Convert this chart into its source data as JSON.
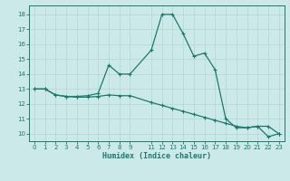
{
  "xlabel": "Humidex (Indice chaleur)",
  "bg_color": "#cce9e9",
  "grid_color": "#b8d8d8",
  "line_color": "#1a7a6e",
  "x_ticks": [
    0,
    1,
    2,
    3,
    4,
    5,
    6,
    7,
    8,
    9,
    11,
    12,
    13,
    14,
    15,
    16,
    17,
    18,
    19,
    20,
    21,
    22,
    23
  ],
  "x_tick_labels": [
    "0",
    "1",
    "2",
    "3",
    "4",
    "5",
    "6",
    "7",
    "8",
    "9",
    "11",
    "12",
    "13",
    "14",
    "15",
    "16",
    "17",
    "18",
    "19",
    "20",
    "21",
    "22",
    "23"
  ],
  "y_ticks": [
    10,
    11,
    12,
    13,
    14,
    15,
    16,
    17,
    18
  ],
  "ylim": [
    9.5,
    18.6
  ],
  "xlim": [
    -0.5,
    23.5
  ],
  "curve1_x": [
    0,
    1,
    2,
    3,
    4,
    5,
    6,
    7,
    8,
    9,
    11,
    12,
    13,
    14,
    15,
    16,
    17,
    18,
    19,
    20,
    21,
    22,
    23
  ],
  "curve1_y": [
    13.0,
    13.0,
    12.6,
    12.5,
    12.5,
    12.55,
    12.7,
    14.6,
    14.0,
    14.0,
    15.6,
    18.0,
    18.0,
    16.7,
    15.2,
    15.4,
    14.3,
    11.0,
    10.4,
    10.4,
    10.5,
    9.8,
    10.0
  ],
  "curve2_x": [
    0,
    1,
    2,
    3,
    4,
    5,
    6,
    7,
    8,
    9,
    11,
    12,
    13,
    14,
    15,
    16,
    17,
    18,
    19,
    20,
    21,
    22,
    23
  ],
  "curve2_y": [
    13.0,
    13.0,
    12.6,
    12.5,
    12.45,
    12.45,
    12.5,
    12.6,
    12.55,
    12.55,
    12.1,
    11.9,
    11.7,
    11.5,
    11.3,
    11.1,
    10.9,
    10.7,
    10.5,
    10.4,
    10.5,
    10.5,
    10.0
  ]
}
